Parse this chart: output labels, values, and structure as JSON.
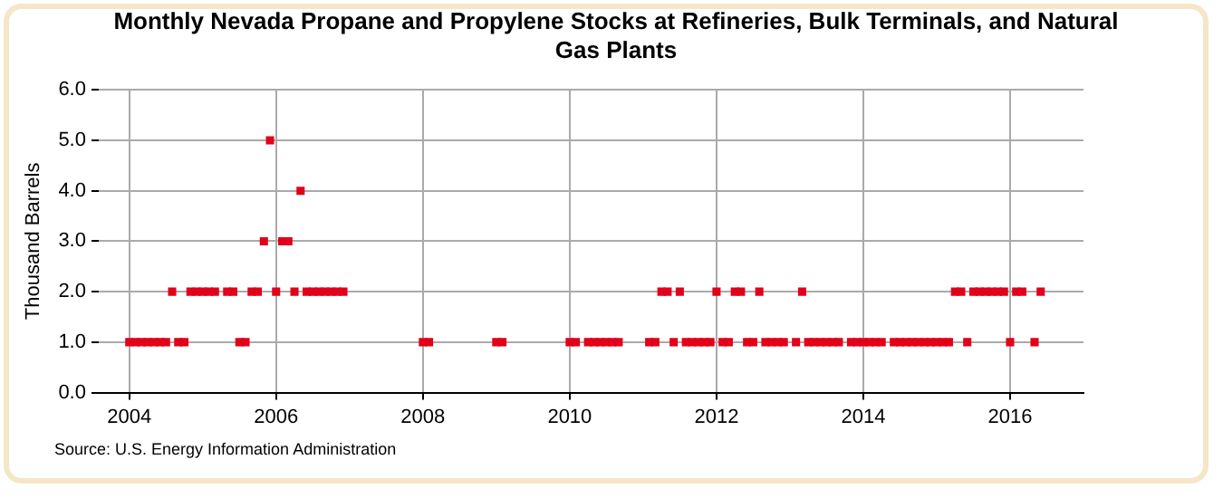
{
  "chart_data": {
    "type": "scatter",
    "title": "Monthly Nevada Propane and Propylene Stocks at Refineries, Bulk Terminals, and Natural Gas Plants",
    "ylabel": "Thousand Barrels",
    "annotations": [
      "Source: U.S. Energy Information Administration"
    ],
    "xlim": [
      "2003-08",
      "2017-01"
    ],
    "xticks": [
      "2004",
      "2006",
      "2008",
      "2010",
      "2012",
      "2014",
      "2016"
    ],
    "ylim": [
      0,
      6
    ],
    "yticks": [
      {
        "value": 0,
        "label": "0.0"
      },
      {
        "value": 1,
        "label": "1.0"
      },
      {
        "value": 2,
        "label": "2.0"
      },
      {
        "value": 3,
        "label": "3.0"
      },
      {
        "value": 4,
        "label": "4.0"
      },
      {
        "value": 5,
        "label": "5.0"
      },
      {
        "value": 6,
        "label": "6.0"
      }
    ],
    "grid": true,
    "legend": false,
    "marker": "square",
    "series": [
      {
        "color": "#e2001a",
        "x": [
          "2004-01",
          "2004-02",
          "2004-03",
          "2004-04",
          "2004-05",
          "2004-06",
          "2004-07",
          "2004-08",
          "2004-09",
          "2004-10",
          "2004-11",
          "2004-12",
          "2005-01",
          "2005-02",
          "2005-03",
          "2005-05",
          "2005-06",
          "2005-07",
          "2005-08",
          "2005-09",
          "2005-10",
          "2005-11",
          "2005-12",
          "2006-01",
          "2006-02",
          "2006-03",
          "2006-04",
          "2006-05",
          "2006-06",
          "2006-07",
          "2006-08",
          "2006-09",
          "2006-10",
          "2006-11",
          "2006-12",
          "2008-01",
          "2008-02",
          "2009-01",
          "2009-02",
          "2010-01",
          "2010-02",
          "2010-04",
          "2010-05",
          "2010-06",
          "2010-07",
          "2010-08",
          "2010-09",
          "2011-02",
          "2011-03",
          "2011-04",
          "2011-05",
          "2011-06",
          "2011-07",
          "2011-08",
          "2011-09",
          "2011-10",
          "2011-11",
          "2011-12",
          "2012-01",
          "2012-02",
          "2012-03",
          "2012-04",
          "2012-05",
          "2012-06",
          "2012-07",
          "2012-08",
          "2012-09",
          "2012-10",
          "2012-11",
          "2012-12",
          "2013-02",
          "2013-03",
          "2013-04",
          "2013-05",
          "2013-06",
          "2013-07",
          "2013-08",
          "2013-09",
          "2013-11",
          "2013-12",
          "2014-01",
          "2014-02",
          "2014-03",
          "2014-04",
          "2014-06",
          "2014-07",
          "2014-08",
          "2014-09",
          "2014-10",
          "2014-11",
          "2014-12",
          "2015-01",
          "2015-02",
          "2015-03",
          "2015-04",
          "2015-05",
          "2015-06",
          "2015-07",
          "2015-08",
          "2015-09",
          "2015-10",
          "2015-11",
          "2015-12",
          "2016-01",
          "2016-02",
          "2016-03",
          "2016-05",
          "2016-06"
        ],
        "values": [
          1,
          1,
          1,
          1,
          1,
          1,
          1,
          2,
          1,
          1,
          2,
          2,
          2,
          2,
          2,
          2,
          2,
          1,
          1,
          2,
          2,
          3,
          5,
          2,
          3,
          3,
          2,
          4,
          2,
          2,
          2,
          2,
          2,
          2,
          2,
          1,
          1,
          1,
          1,
          1,
          1,
          1,
          1,
          1,
          1,
          1,
          1,
          1,
          1,
          2,
          2,
          1,
          2,
          1,
          1,
          1,
          1,
          1,
          2,
          1,
          1,
          2,
          2,
          1,
          1,
          2,
          1,
          1,
          1,
          1,
          1,
          2,
          1,
          1,
          1,
          1,
          1,
          1,
          1,
          1,
          1,
          1,
          1,
          1,
          1,
          1,
          1,
          1,
          1,
          1,
          1,
          1,
          1,
          1,
          2,
          2,
          1,
          2,
          2,
          2,
          2,
          2,
          2,
          1,
          2,
          2,
          1,
          2
        ]
      }
    ]
  }
}
